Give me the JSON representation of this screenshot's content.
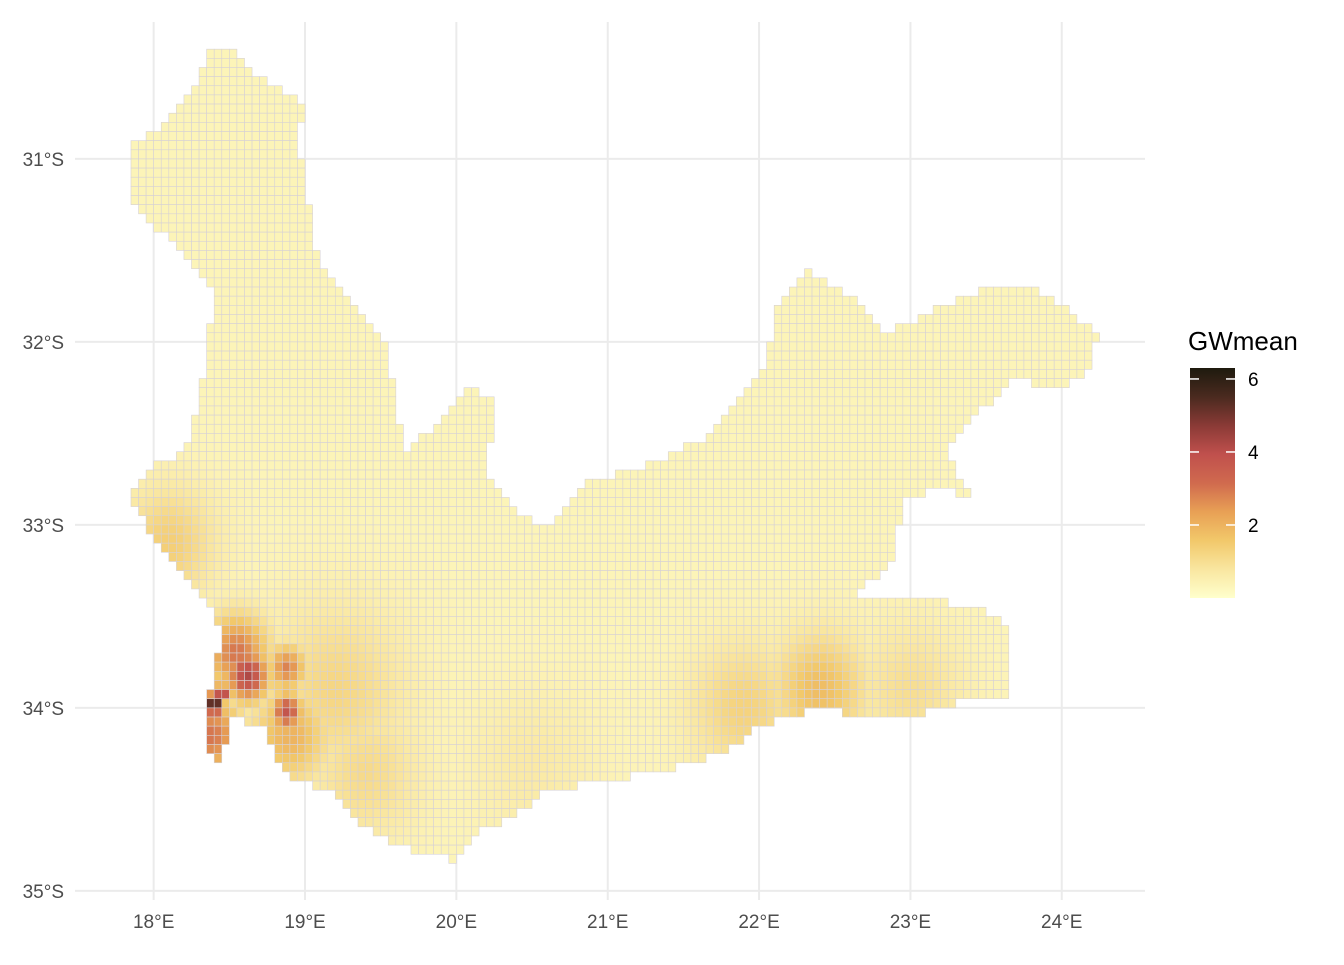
{
  "chart_data": {
    "type": "heatmap",
    "title": "",
    "xlabel": "",
    "ylabel": "",
    "x_range_deg": [
      17.5,
      24.55
    ],
    "y_range_deg_south": [
      30.35,
      35.05
    ],
    "x_ticks": [
      {
        "value": 18,
        "label": "18°E"
      },
      {
        "value": 19,
        "label": "19°E"
      },
      {
        "value": 20,
        "label": "20°E"
      },
      {
        "value": 21,
        "label": "21°E"
      },
      {
        "value": 22,
        "label": "22°E"
      },
      {
        "value": 23,
        "label": "23°E"
      },
      {
        "value": 24,
        "label": "24°E"
      }
    ],
    "y_ticks": [
      {
        "value": 31,
        "label": "31°S"
      },
      {
        "value": 32,
        "label": "32°S"
      },
      {
        "value": 33,
        "label": "33°S"
      },
      {
        "value": 34,
        "label": "34°S"
      },
      {
        "value": 35,
        "label": "35°S"
      }
    ],
    "grid": true,
    "legend": {
      "title": "GWmean",
      "position": "right",
      "min": 0,
      "max": 6.3,
      "breaks": [
        {
          "value": 2,
          "label": "2"
        },
        {
          "value": 4,
          "label": "4"
        },
        {
          "value": 6,
          "label": "6"
        }
      ],
      "colors": [
        "#ffffcc",
        "#f9e6a0",
        "#f2c86a",
        "#e8a055",
        "#d06a4e",
        "#c0504d",
        "#8a3a36",
        "#4a2a1f",
        "#1e1a0e"
      ]
    },
    "cell_size_deg": 0.05,
    "cell_border_color": "#d6d1d6",
    "region_outline_deg": [
      [
        18.35,
        30.4
      ],
      [
        18.5,
        30.4
      ],
      [
        18.7,
        30.55
      ],
      [
        19.0,
        30.7
      ],
      [
        18.95,
        30.9
      ],
      [
        19.05,
        31.35
      ],
      [
        19.1,
        31.6
      ],
      [
        19.3,
        31.75
      ],
      [
        19.45,
        31.9
      ],
      [
        19.55,
        32.05
      ],
      [
        19.6,
        32.3
      ],
      [
        19.65,
        32.6
      ],
      [
        19.95,
        32.4
      ],
      [
        20.05,
        32.25
      ],
      [
        20.25,
        32.3
      ],
      [
        20.25,
        32.45
      ],
      [
        20.2,
        32.7
      ],
      [
        20.3,
        32.85
      ],
      [
        20.55,
        33.0
      ],
      [
        20.7,
        32.95
      ],
      [
        20.85,
        32.75
      ],
      [
        21.2,
        32.7
      ],
      [
        21.45,
        32.6
      ],
      [
        21.7,
        32.5
      ],
      [
        21.9,
        32.3
      ],
      [
        22.05,
        32.15
      ],
      [
        22.1,
        31.85
      ],
      [
        22.3,
        31.6
      ],
      [
        22.6,
        31.75
      ],
      [
        22.85,
        31.95
      ],
      [
        23.1,
        31.85
      ],
      [
        23.35,
        31.75
      ],
      [
        23.6,
        31.7
      ],
      [
        23.8,
        31.7
      ],
      [
        24.0,
        31.8
      ],
      [
        24.25,
        31.95
      ],
      [
        24.15,
        32.2
      ],
      [
        23.95,
        32.25
      ],
      [
        23.7,
        32.2
      ],
      [
        23.5,
        32.35
      ],
      [
        23.35,
        32.45
      ],
      [
        23.25,
        32.6
      ],
      [
        23.4,
        32.85
      ],
      [
        23.2,
        32.8
      ],
      [
        22.95,
        32.85
      ],
      [
        22.9,
        33.15
      ],
      [
        22.8,
        33.3
      ],
      [
        22.6,
        33.35
      ],
      [
        22.75,
        33.4
      ],
      [
        23.1,
        33.4
      ],
      [
        23.45,
        33.45
      ],
      [
        23.65,
        33.55
      ],
      [
        23.65,
        33.95
      ],
      [
        23.55,
        33.97
      ],
      [
        23.4,
        33.95
      ],
      [
        23.0,
        34.05
      ],
      [
        22.7,
        34.05
      ],
      [
        22.4,
        34.0
      ],
      [
        22.2,
        34.05
      ],
      [
        22.0,
        34.1
      ],
      [
        21.85,
        34.2
      ],
      [
        21.6,
        34.3
      ],
      [
        21.3,
        34.35
      ],
      [
        21.0,
        34.4
      ],
      [
        20.6,
        34.45
      ],
      [
        20.35,
        34.6
      ],
      [
        20.1,
        34.7
      ],
      [
        20.0,
        34.83
      ],
      [
        19.8,
        34.8
      ],
      [
        19.6,
        34.75
      ],
      [
        19.3,
        34.6
      ],
      [
        19.2,
        34.45
      ],
      [
        18.95,
        34.4
      ],
      [
        18.8,
        34.3
      ],
      [
        18.75,
        34.1
      ],
      [
        18.6,
        34.07
      ],
      [
        18.5,
        34.05
      ],
      [
        18.45,
        34.35
      ],
      [
        18.35,
        34.2
      ],
      [
        18.35,
        33.95
      ],
      [
        18.4,
        33.8
      ],
      [
        18.45,
        33.6
      ],
      [
        18.35,
        33.4
      ],
      [
        18.15,
        33.2
      ],
      [
        18.0,
        33.1
      ],
      [
        17.95,
        32.95
      ],
      [
        17.85,
        32.85
      ],
      [
        17.95,
        32.7
      ],
      [
        18.2,
        32.6
      ],
      [
        18.3,
        32.35
      ],
      [
        18.35,
        32.05
      ],
      [
        18.4,
        31.75
      ],
      [
        18.2,
        31.5
      ],
      [
        17.95,
        31.35
      ],
      [
        17.85,
        31.2
      ],
      [
        17.85,
        30.9
      ],
      [
        18.05,
        30.85
      ],
      [
        18.15,
        30.7
      ],
      [
        18.3,
        30.6
      ]
    ],
    "hotspots": [
      {
        "lon": 18.4,
        "lat": 33.98,
        "value": 6.2,
        "radius": 0.06
      },
      {
        "lon": 18.45,
        "lat": 33.92,
        "value": 4.8,
        "radius": 0.05
      },
      {
        "lon": 18.38,
        "lat": 34.15,
        "value": 3.0,
        "radius": 0.2
      },
      {
        "lon": 18.62,
        "lat": 33.82,
        "value": 4.2,
        "radius": 0.14
      },
      {
        "lon": 18.55,
        "lat": 33.7,
        "value": 3.0,
        "radius": 0.2
      },
      {
        "lon": 18.88,
        "lat": 34.02,
        "value": 3.8,
        "radius": 0.1
      },
      {
        "lon": 18.88,
        "lat": 33.78,
        "value": 2.8,
        "radius": 0.12
      },
      {
        "lon": 18.9,
        "lat": 34.15,
        "value": 2.0,
        "radius": 0.25
      },
      {
        "lon": 18.1,
        "lat": 33.1,
        "value": 1.4,
        "radius": 0.3
      },
      {
        "lon": 19.2,
        "lat": 33.9,
        "value": 1.2,
        "radius": 0.45
      },
      {
        "lon": 19.4,
        "lat": 34.35,
        "value": 1.1,
        "radius": 0.35
      },
      {
        "lon": 22.4,
        "lat": 33.9,
        "value": 1.8,
        "radius": 0.3
      },
      {
        "lon": 21.9,
        "lat": 34.0,
        "value": 1.3,
        "radius": 0.35
      },
      {
        "lon": 23.0,
        "lat": 33.9,
        "value": 1.0,
        "radius": 0.35
      },
      {
        "lon": 20.5,
        "lat": 34.3,
        "value": 0.7,
        "radius": 0.4
      },
      {
        "lon": 18.3,
        "lat": 33.78,
        "value": 3.5,
        "radius": 0.03
      }
    ],
    "base_value": 0.35
  }
}
